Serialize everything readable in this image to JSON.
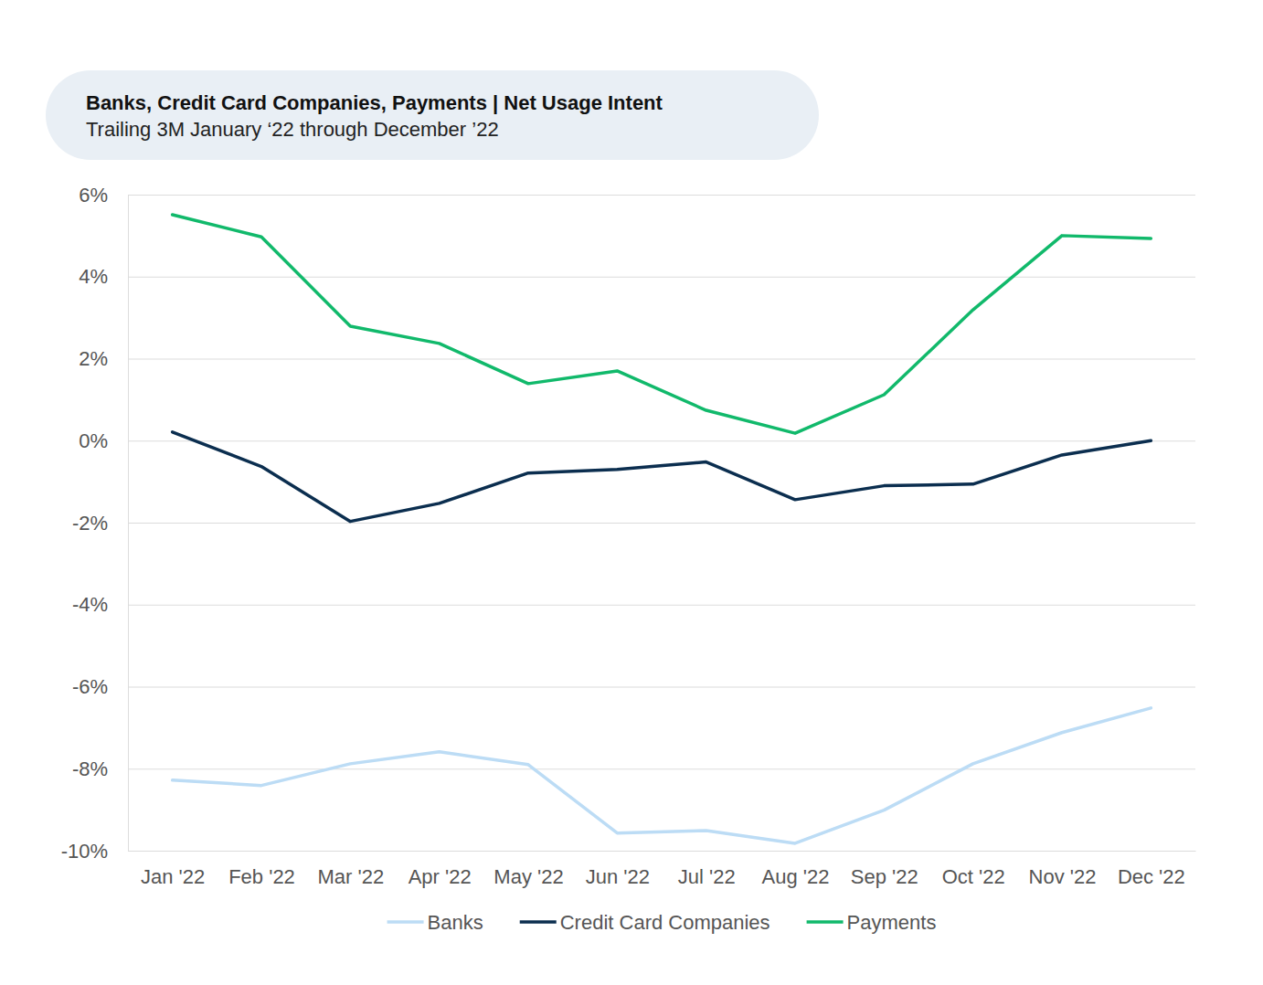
{
  "chart_data": {
    "type": "line",
    "title": "Banks, Credit Card Companies, Payments | Net Usage Intent",
    "subtitle": "Trailing 3M January ‘22 through December ’22",
    "categories": [
      "Jan '22",
      "Feb '22",
      "Mar '22",
      "Apr '22",
      "May '22",
      "Jun '22",
      "Jul '22",
      "Aug '22",
      "Sep '22",
      "Oct '22",
      "Nov '22",
      "Dec '22"
    ],
    "series": [
      {
        "name": "Banks",
        "color": "#bcdcf5",
        "values": [
          -8.28,
          -8.41,
          -7.88,
          -7.59,
          -7.9,
          -9.57,
          -9.51,
          -9.82,
          -9.01,
          -7.88,
          -7.12,
          -6.52
        ]
      },
      {
        "name": "Credit Card Companies",
        "color": "#0b2e4f",
        "values": [
          0.21,
          -0.63,
          -1.97,
          -1.53,
          -0.79,
          -0.7,
          -0.52,
          -1.44,
          -1.1,
          -1.06,
          -0.35,
          0
        ]
      },
      {
        "name": "Payments",
        "color": "#11b96b",
        "values": [
          5.51,
          4.97,
          2.79,
          2.37,
          1.39,
          1.7,
          0.74,
          0.18,
          1.12,
          3.19,
          5.0,
          4.93
        ]
      }
    ],
    "ylim": [
      -10,
      6
    ],
    "yticks": [
      {
        "value": -10,
        "label": "-10%"
      },
      {
        "value": -8,
        "label": "-8%"
      },
      {
        "value": -6,
        "label": "-6%"
      },
      {
        "value": -4,
        "label": "-4%"
      },
      {
        "value": -2,
        "label": "-2%"
      },
      {
        "value": 0,
        "label": "0%"
      },
      {
        "value": 2,
        "label": "2%"
      },
      {
        "value": 4,
        "label": "4%"
      },
      {
        "value": 6,
        "label": "6%"
      }
    ],
    "grid": true,
    "legend": "bottom"
  }
}
